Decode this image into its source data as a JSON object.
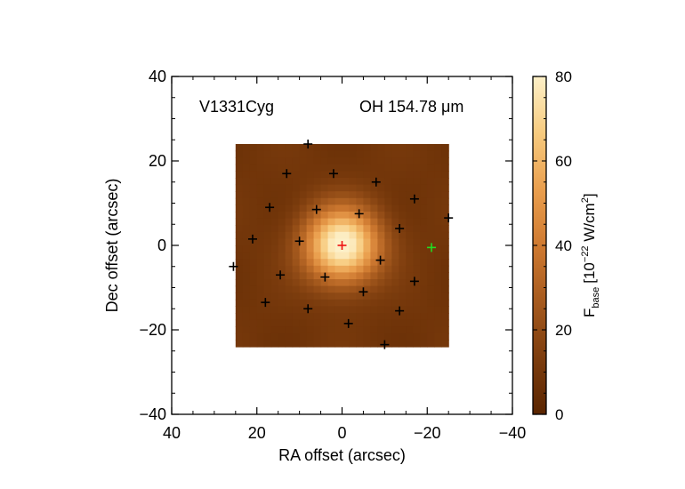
{
  "chart_data": {
    "type": "heatmap",
    "source_name": "V1331Cyg",
    "line_label": "OH 154.78 μm",
    "xlabel": "RA offset (arcsec)",
    "ylabel": "Dec offset (arcsec)",
    "xlim": [
      40,
      -40
    ],
    "ylim": [
      -40,
      40
    ],
    "x_ticks": [
      40,
      20,
      0,
      -20,
      -40
    ],
    "y_ticks": [
      -40,
      -20,
      0,
      20,
      40
    ],
    "map_extent": {
      "ra": [
        25,
        -25
      ],
      "dec": [
        -24,
        24
      ]
    },
    "map_peak": {
      "ra": 0,
      "dec": 0,
      "value": 80
    },
    "colorbar": {
      "label_main": "F",
      "label_sub": "base",
      "label_unit_a": "[10",
      "label_exp": "−22",
      "label_unit_b": " W/cm",
      "label_sq": "2",
      "label_end": "]",
      "range": [
        0,
        80
      ],
      "ticks": [
        0,
        20,
        40,
        60,
        80
      ],
      "colors": [
        "#5a2500",
        "#7d3d0e",
        "#a65a1e",
        "#cf7a31",
        "#ea9f4e",
        "#f7cb7f",
        "#fdf0c8"
      ]
    },
    "spaxels": [
      {
        "ra": 8,
        "dec": 24
      },
      {
        "ra": 13,
        "dec": 17
      },
      {
        "ra": 2,
        "dec": 17
      },
      {
        "ra": -8,
        "dec": 15
      },
      {
        "ra": -17,
        "dec": 11
      },
      {
        "ra": 17,
        "dec": 9
      },
      {
        "ra": 6,
        "dec": 8.5
      },
      {
        "ra": -4,
        "dec": 7.5
      },
      {
        "ra": -25,
        "dec": 6.5
      },
      {
        "ra": -13.5,
        "dec": 4
      },
      {
        "ra": 21,
        "dec": 1.5
      },
      {
        "ra": 10,
        "dec": 1
      },
      {
        "ra": -9,
        "dec": -3.5
      },
      {
        "ra": 25.5,
        "dec": -5
      },
      {
        "ra": 14.5,
        "dec": -7
      },
      {
        "ra": 4,
        "dec": -7.5
      },
      {
        "ra": -17,
        "dec": -8.5
      },
      {
        "ra": -5,
        "dec": -11
      },
      {
        "ra": 18,
        "dec": -13.5
      },
      {
        "ra": 8,
        "dec": -15
      },
      {
        "ra": -13.5,
        "dec": -15.5
      },
      {
        "ra": -1.5,
        "dec": -18.5
      },
      {
        "ra": -10,
        "dec": -23.5
      }
    ],
    "central_spaxel": {
      "ra": 0,
      "dec": 0,
      "color": "#ee1111"
    },
    "highlight_spaxel": {
      "ra": -21,
      "dec": -0.5,
      "color": "#22dd22"
    }
  }
}
